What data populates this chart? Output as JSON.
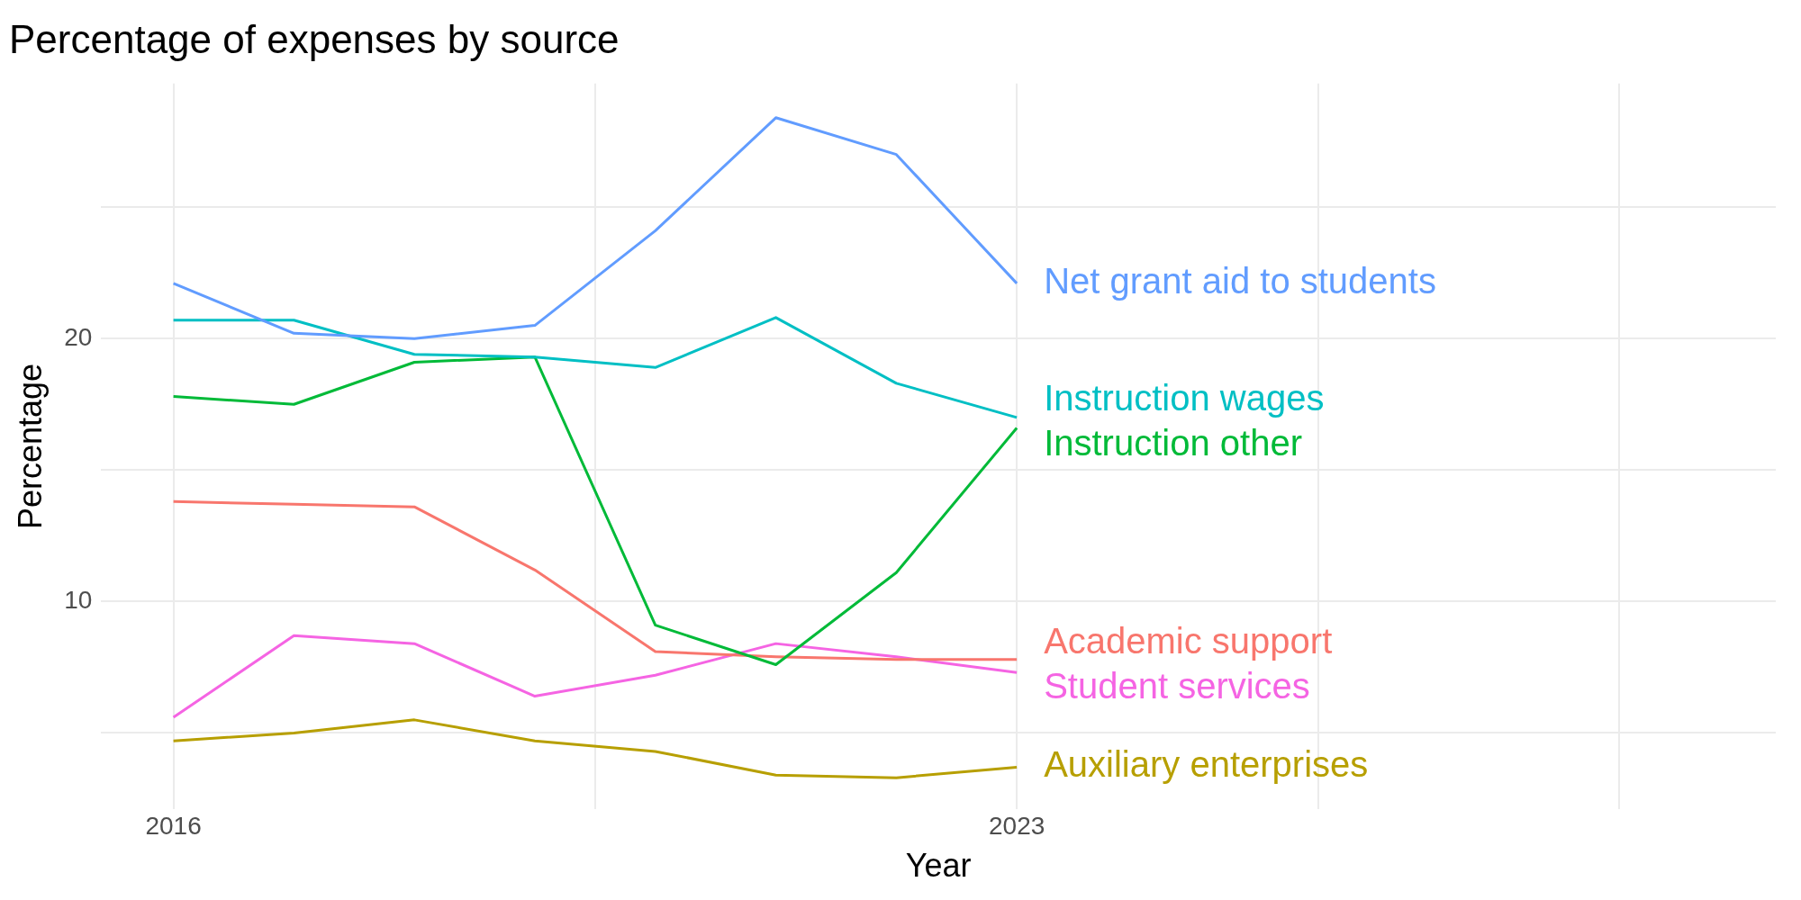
{
  "chart_data": {
    "type": "line",
    "title": "Percentage of expenses by source",
    "xlabel": "Year",
    "ylabel": "Percentage",
    "x": [
      2016,
      2017,
      2018,
      2019,
      2020,
      2021,
      2022,
      2023
    ],
    "xlim": [
      2015.4,
      2029.3
    ],
    "xticks": [
      2016,
      {
        "value": 2019.5,
        "label": null
      },
      2023,
      {
        "value": 2025.5,
        "label": null
      },
      {
        "value": 2028,
        "label": null
      }
    ],
    "ylim": [
      2.1,
      29.7
    ],
    "yticks": [
      {
        "value": 5,
        "label": null
      },
      10,
      {
        "value": 15,
        "label": null
      },
      20,
      {
        "value": 25,
        "label": null
      }
    ],
    "grid": true,
    "series": [
      {
        "name": "Net grant aid to students",
        "color": "#619cff",
        "values": [
          22.1,
          20.2,
          20.0,
          20.5,
          24.1,
          28.4,
          27.0,
          22.1
        ]
      },
      {
        "name": "Instruction wages",
        "color": "#00bfc4",
        "values": [
          20.7,
          20.7,
          19.4,
          19.3,
          18.9,
          20.8,
          18.3,
          17.0
        ]
      },
      {
        "name": "Instruction other",
        "color": "#00ba38",
        "values": [
          17.8,
          17.5,
          19.1,
          19.3,
          9.1,
          7.6,
          11.1,
          16.6
        ]
      },
      {
        "name": "Academic support",
        "color": "#f8766d",
        "values": [
          13.8,
          13.7,
          13.6,
          11.2,
          8.1,
          7.9,
          7.8,
          7.8
        ]
      },
      {
        "name": "Student services",
        "color": "#f564e3",
        "values": [
          5.6,
          8.7,
          8.4,
          6.4,
          7.2,
          8.4,
          7.9,
          7.3
        ]
      },
      {
        "name": "Auxiliary enterprises",
        "color": "#b79f00",
        "values": [
          4.7,
          5.0,
          5.5,
          4.7,
          4.3,
          3.4,
          3.3,
          3.7
        ]
      }
    ]
  }
}
